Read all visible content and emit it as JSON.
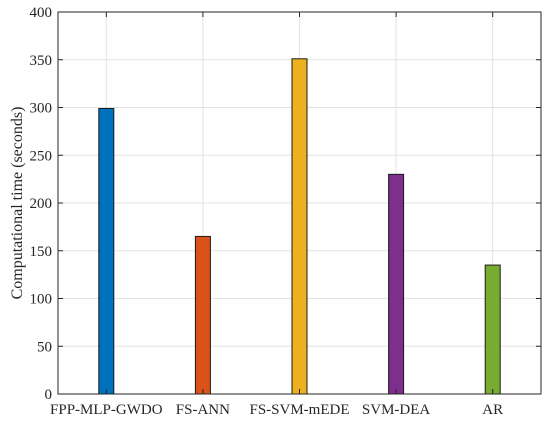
{
  "chart_data": {
    "type": "bar",
    "categories": [
      "FPP-MLP-GWDO",
      "FS-ANN",
      "FS-SVM-mEDE",
      "SVM-DEA",
      "AR"
    ],
    "values": [
      299,
      165,
      351,
      230,
      135
    ],
    "colors": [
      "#0072BD",
      "#D95319",
      "#EDB120",
      "#7E2F8E",
      "#77AC30"
    ],
    "ylabel": "Computational time (seconds)",
    "xlabel": "",
    "title": "",
    "ylim": [
      0,
      400
    ],
    "yticks": [
      0,
      50,
      100,
      150,
      200,
      250,
      300,
      350,
      400
    ],
    "grid": true
  }
}
